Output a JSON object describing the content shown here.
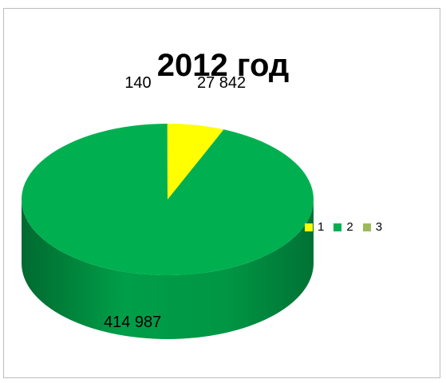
{
  "chart_data": {
    "type": "pie",
    "title": "2012 год",
    "categories": [
      "1",
      "2",
      "3"
    ],
    "values": [
      27842,
      414987,
      140
    ],
    "data_labels": [
      "27 842",
      "414 987",
      "140"
    ],
    "colors": [
      "#ffff00",
      "#00b050",
      "#9bbb59"
    ],
    "legend_position": "right",
    "style": "3d"
  }
}
